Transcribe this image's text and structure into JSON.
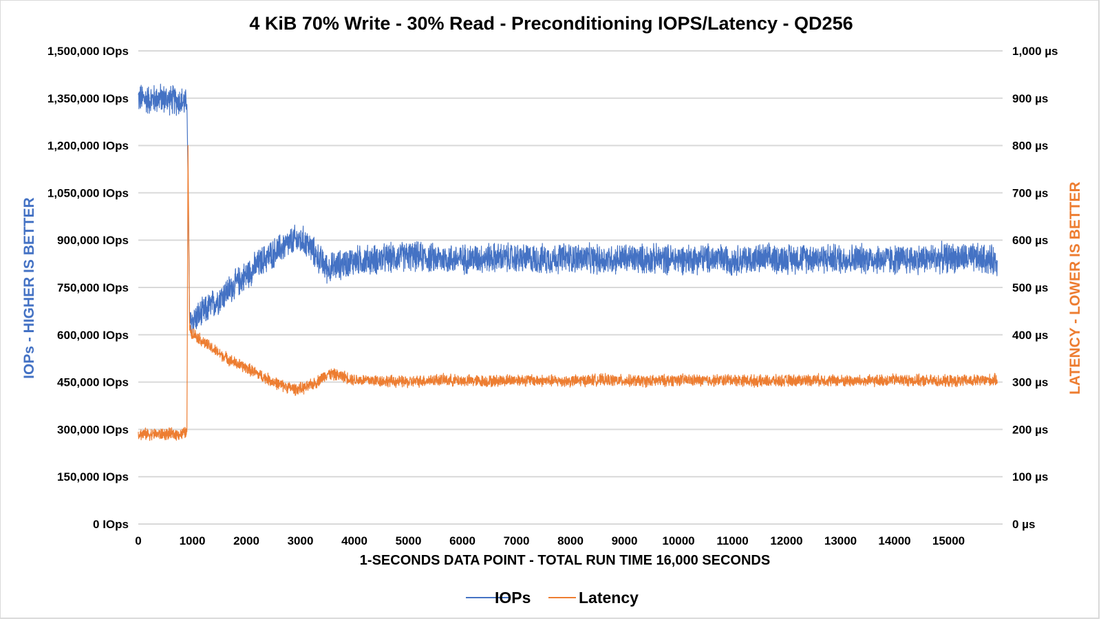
{
  "chart_data": {
    "type": "line",
    "title": "4 KiB 70% Write - 30% Read - Preconditioning IOPS/Latency - QD256",
    "xlabel": "1-SECONDS DATA POINT - TOTAL RUN TIME 16,000 SECONDS",
    "ylabel": "IOPs - HIGHER IS BETTER",
    "y2label": "LATENCY - LOWER IS BETTER",
    "xlim": [
      0,
      16000
    ],
    "ylim": [
      0,
      1500000
    ],
    "y2lim": [
      0,
      1000
    ],
    "grid": true,
    "legend_position": "bottom",
    "x_ticks": [
      "0",
      "1000",
      "2000",
      "3000",
      "4000",
      "5000",
      "6000",
      "7000",
      "8000",
      "9000",
      "10000",
      "11000",
      "12000",
      "13000",
      "14000",
      "15000"
    ],
    "y_ticks": [
      "0 IOps",
      "150,000 IOps",
      "300,000 IOps",
      "450,000 IOps",
      "600,000 IOps",
      "750,000 IOps",
      "900,000 IOps",
      "1,050,000 IOps",
      "1,200,000 IOps",
      "1,350,000 IOps",
      "1,500,000 IOps"
    ],
    "y2_ticks": [
      "0 µs",
      "100 µs",
      "200 µs",
      "300 µs",
      "400 µs",
      "500 µs",
      "600 µs",
      "700 µs",
      "800 µs",
      "900 µs",
      "1,000 µs"
    ],
    "series": [
      {
        "name": "IOPs",
        "axis": "left",
        "color": "#4472c4",
        "x": [
          0,
          200,
          400,
          600,
          800,
          900,
          920,
          950,
          1000,
          1200,
          1500,
          1800,
          2000,
          2300,
          2600,
          2900,
          3100,
          3300,
          3500,
          3800,
          4000,
          4500,
          5000,
          5500,
          6000,
          6500,
          7000,
          7500,
          8000,
          8500,
          9000,
          9500,
          10000,
          10500,
          11000,
          11500,
          12000,
          12500,
          13000,
          13500,
          14000,
          14500,
          15000,
          15500,
          15900
        ],
        "values": [
          1350000,
          1345000,
          1350000,
          1345000,
          1340000,
          1330000,
          1100000,
          640000,
          645000,
          670000,
          715000,
          760000,
          790000,
          835000,
          870000,
          900000,
          895000,
          850000,
          810000,
          825000,
          835000,
          840000,
          850000,
          842000,
          840000,
          845000,
          842000,
          840000,
          845000,
          838000,
          842000,
          840000,
          840000,
          842000,
          838000,
          840000,
          842000,
          845000,
          840000,
          842000,
          838000,
          840000,
          845000,
          842000,
          835000
        ],
        "noise": 45000
      },
      {
        "name": "Latency",
        "axis": "right",
        "color": "#ed7d31",
        "x": [
          0,
          200,
          400,
          600,
          800,
          900,
          920,
          950,
          1000,
          1200,
          1500,
          1800,
          2000,
          2300,
          2600,
          2900,
          3100,
          3300,
          3500,
          3800,
          4000,
          4500,
          5000,
          5500,
          6000,
          6500,
          7000,
          7500,
          8000,
          8500,
          9000,
          9500,
          10000,
          10500,
          11000,
          11500,
          12000,
          12500,
          13000,
          13500,
          14000,
          14500,
          15000,
          15500,
          15900
        ],
        "values": [
          190,
          190,
          190,
          190,
          190,
          195,
          800,
          410,
          405,
          385,
          360,
          340,
          330,
          312,
          295,
          285,
          288,
          300,
          318,
          312,
          305,
          303,
          300,
          305,
          303,
          302,
          305,
          303,
          302,
          305,
          303,
          302,
          305,
          303,
          305,
          302,
          303,
          305,
          303,
          302,
          305,
          303,
          302,
          303,
          305
        ],
        "noise": 12
      }
    ]
  }
}
